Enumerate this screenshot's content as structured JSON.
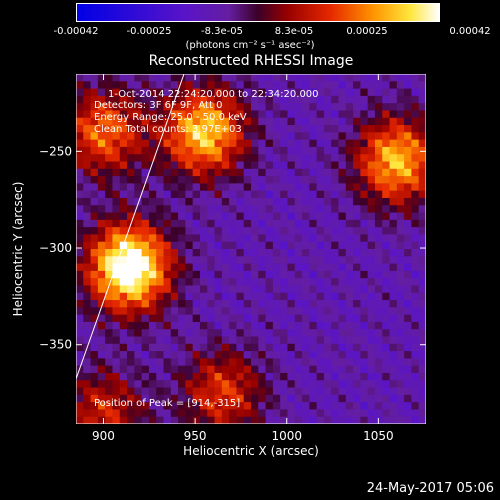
{
  "chart_data": {
    "type": "heatmap",
    "title": "Reconstructed RHESSI Image",
    "xlabel": "Heliocentric X (arcsec)",
    "ylabel": "Heliocentric Y (arcsec)",
    "xlim": [
      885,
      1076
    ],
    "ylim": [
      -391,
      -210
    ],
    "x_ticks": [
      900,
      950,
      1000,
      1050
    ],
    "y_ticks": [
      -250,
      -300,
      -350
    ],
    "colorbar": {
      "ticks": [
        "-0.00042",
        "-0.00025",
        "-8.3e-05",
        "8.3e-05",
        "0.00025",
        "0.00042"
      ],
      "units": "(photons cm⁻² s⁻¹ asec⁻²)",
      "range": [
        -0.00042,
        0.00042
      ]
    },
    "info_lines": [
      "1-Oct-2014 22:24:20.000 to 22:34:20.000",
      "Detectors: 3F 6F 9F, Att 0",
      "Energy Range: 25.0 - 50.0 keV",
      "Clean    Total counts: 3.97E+03"
    ],
    "peak_label": "Position of Peak = [914,-315]",
    "peak": [
      914,
      -315
    ],
    "bright_regions": [
      {
        "x": 914,
        "y": -310,
        "strength": 1.0
      },
      {
        "x": 900,
        "y": -240,
        "strength": 0.55
      },
      {
        "x": 955,
        "y": -240,
        "strength": 0.75
      },
      {
        "x": 1060,
        "y": -255,
        "strength": 0.7
      },
      {
        "x": 965,
        "y": -375,
        "strength": 0.45
      },
      {
        "x": 900,
        "y": -385,
        "strength": 0.4
      }
    ]
  },
  "footer": {
    "date": "24-May-2017 05:06"
  },
  "colors": {
    "background": "#000000",
    "text": "#ffffff"
  }
}
